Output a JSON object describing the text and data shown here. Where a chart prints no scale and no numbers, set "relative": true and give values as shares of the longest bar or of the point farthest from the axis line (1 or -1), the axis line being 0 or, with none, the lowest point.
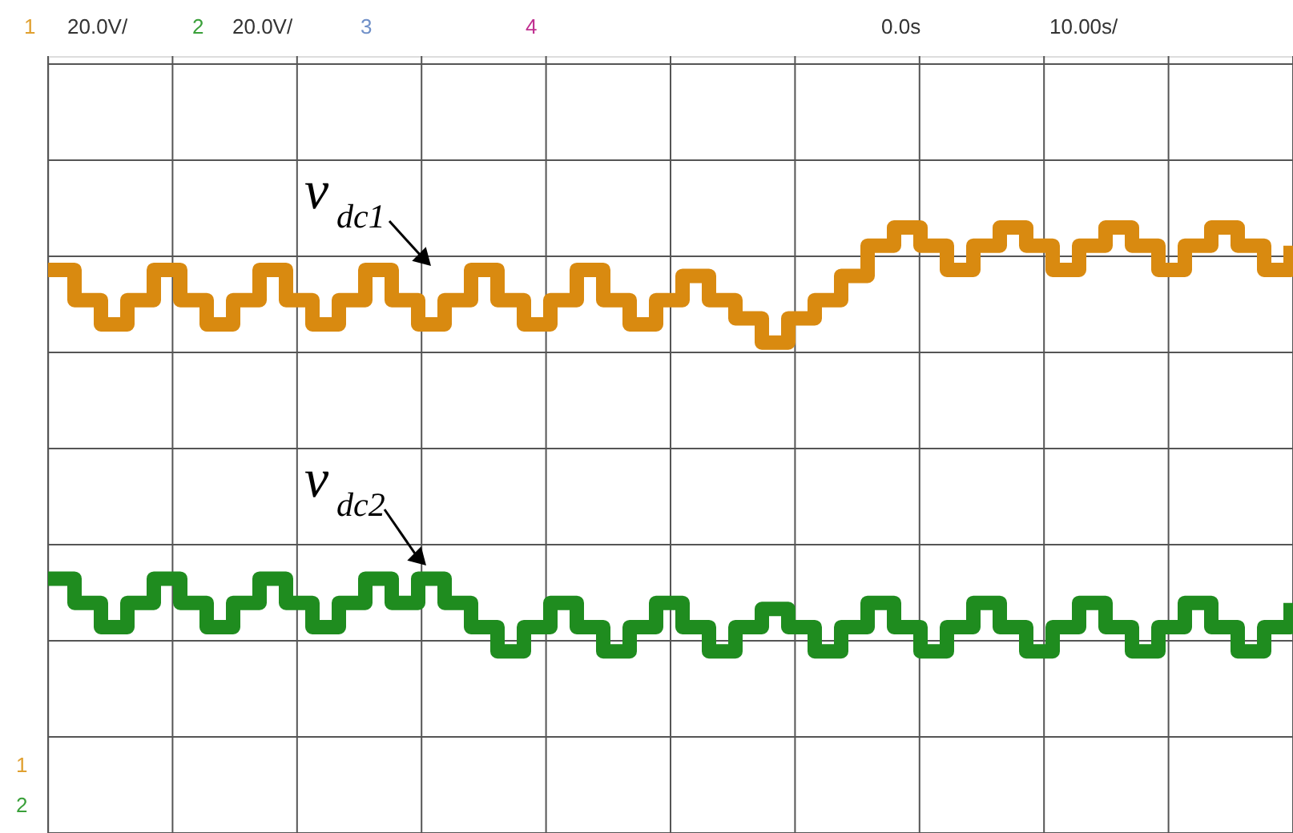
{
  "chart_data": {
    "type": "step",
    "relative": true,
    "grid": true,
    "categories": [
      null,
      null,
      null,
      null,
      null,
      null,
      null,
      null,
      null,
      null,
      null,
      null,
      null,
      null,
      null,
      null,
      null,
      null,
      null,
      null,
      null,
      null,
      null,
      null,
      null,
      null,
      null,
      null,
      null,
      null,
      null,
      null,
      null,
      null,
      null,
      null,
      null,
      null,
      null,
      null,
      null,
      null,
      null,
      null,
      null,
      null,
      null,
      null
    ],
    "series": [
      {
        "name": "v$_{dc1}$",
        "color": "#d98a10",
        "values": [
          0.93,
          0.88,
          0.84,
          0.88,
          0.93,
          0.88,
          0.84,
          0.88,
          0.93,
          0.88,
          0.84,
          0.88,
          0.93,
          0.88,
          0.84,
          0.88,
          0.93,
          0.88,
          0.84,
          0.88,
          0.93,
          0.88,
          0.84,
          0.88,
          0.92,
          0.88,
          0.85,
          0.81,
          0.85,
          0.88,
          0.92,
          0.97,
          1.0,
          0.97,
          0.93,
          0.97,
          1.0,
          0.97,
          0.93,
          0.97,
          1.0,
          0.97,
          0.93,
          0.97,
          1.0,
          0.97,
          0.93,
          0.97
        ]
      },
      {
        "name": "v$_{dc2}$",
        "color": "#1f8c1f",
        "values": [
          0.42,
          0.38,
          0.34,
          0.38,
          0.42,
          0.38,
          0.34,
          0.38,
          0.42,
          0.38,
          0.34,
          0.38,
          0.42,
          0.38,
          0.42,
          0.38,
          0.34,
          0.3,
          0.34,
          0.38,
          0.34,
          0.3,
          0.34,
          0.38,
          0.34,
          0.3,
          0.34,
          0.37,
          0.34,
          0.3,
          0.34,
          0.38,
          0.34,
          0.3,
          0.34,
          0.38,
          0.34,
          0.3,
          0.34,
          0.38,
          0.34,
          0.3,
          0.34,
          0.38,
          0.34,
          0.3,
          0.34,
          0.38
        ]
      }
    ],
    "annotations": [
      "1",
      "20.0V/",
      "2",
      "20.0V/",
      "3",
      "4",
      "0.0s",
      "10.00s/",
      "1",
      "2"
    ]
  }
}
